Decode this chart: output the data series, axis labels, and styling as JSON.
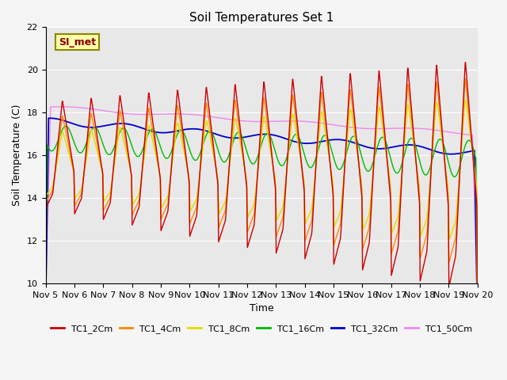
{
  "title": "Soil Temperatures Set 1",
  "xlabel": "Time",
  "ylabel": "Soil Temperature (C)",
  "ylim": [
    10,
    22
  ],
  "annotation_text": "SI_met",
  "background_color": "#e8e8e8",
  "fig_facecolor": "#f5f5f5",
  "x_tick_labels": [
    "Nov 5",
    "Nov 6",
    "Nov 7",
    "Nov 8",
    "Nov 9",
    "Nov 10",
    "Nov 11",
    "Nov 12",
    "Nov 13",
    "Nov 14",
    "Nov 15",
    "Nov 16",
    "Nov 17",
    "Nov 18",
    "Nov 19",
    "Nov 20"
  ],
  "series": {
    "TC1_2Cm": {
      "color": "#cc0000",
      "lw": 1.0
    },
    "TC1_4Cm": {
      "color": "#ff8800",
      "lw": 1.0
    },
    "TC1_8Cm": {
      "color": "#dddd00",
      "lw": 1.0
    },
    "TC1_16Cm": {
      "color": "#00bb00",
      "lw": 1.0
    },
    "TC1_32Cm": {
      "color": "#0000cc",
      "lw": 1.3
    },
    "TC1_50Cm": {
      "color": "#ee88ee",
      "lw": 1.0
    }
  },
  "legend_colors": [
    "#cc0000",
    "#ff8800",
    "#dddd00",
    "#00bb00",
    "#0000cc",
    "#ee88ee"
  ],
  "legend_labels": [
    "TC1_2Cm",
    "TC1_4Cm",
    "TC1_8Cm",
    "TC1_16Cm",
    "TC1_32Cm",
    "TC1_50Cm"
  ]
}
